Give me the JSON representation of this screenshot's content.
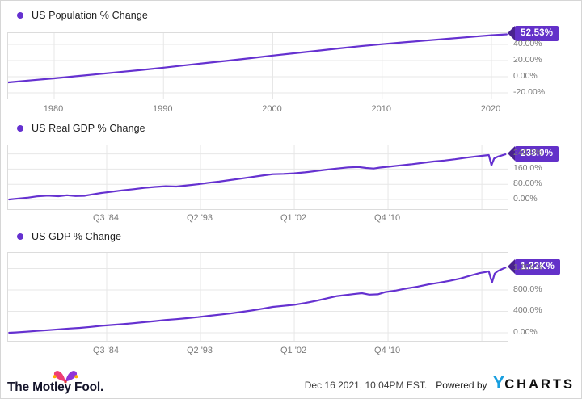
{
  "colors": {
    "line": "#6531d0",
    "legend_dot": "#6531d0",
    "badge_bg": "#6331c9",
    "badge_tip": "#49228f",
    "grid": "#e7e7e7",
    "plot_border": "#dcdcdc",
    "axis_text": "#7a7a7a",
    "ycharts_blue": "#189fe0",
    "fool_pink": "#ee3d74",
    "fool_purple": "#8f35d8",
    "fool_gold": "#ffac00"
  },
  "chart_data": [
    {
      "type": "line",
      "title": "US Population % Change",
      "badge": "52.53%",
      "legend": [
        "US Population % Change"
      ],
      "xlabel": "",
      "ylabel": "% Change",
      "x_ticks": [
        {
          "label": "1980",
          "x": 1980
        },
        {
          "label": "1990",
          "x": 1990
        },
        {
          "label": "2000",
          "x": 2000
        },
        {
          "label": "2010",
          "x": 2010
        },
        {
          "label": "2020",
          "x": 2020
        }
      ],
      "y_ticks": [
        {
          "label": "40.00%",
          "v": 40
        },
        {
          "label": "20.00%",
          "v": 20
        },
        {
          "label": "0.00%",
          "v": 0
        },
        {
          "label": "-20.00%",
          "v": -20
        }
      ],
      "x_range": [
        1975.8,
        2021.5
      ],
      "y_range": [
        -27,
        54
      ],
      "points": [
        [
          1975.8,
          -7
        ],
        [
          1978,
          -4.3
        ],
        [
          1980,
          -2
        ],
        [
          1982,
          0.6
        ],
        [
          1984,
          3.2
        ],
        [
          1986,
          5.8
        ],
        [
          1988,
          8.4
        ],
        [
          1990,
          11.2
        ],
        [
          1992,
          14.2
        ],
        [
          1994,
          17.1
        ],
        [
          1996,
          20.0
        ],
        [
          1998,
          23.0
        ],
        [
          2000,
          26.2
        ],
        [
          2002,
          29.1
        ],
        [
          2004,
          32.0
        ],
        [
          2006,
          35.0
        ],
        [
          2008,
          37.8
        ],
        [
          2010,
          40.3
        ],
        [
          2012,
          42.6
        ],
        [
          2014,
          44.8
        ],
        [
          2016,
          47.0
        ],
        [
          2018,
          49.2
        ],
        [
          2019,
          50.3
        ],
        [
          2020,
          51.4
        ],
        [
          2021.4,
          52.53
        ]
      ]
    },
    {
      "type": "line",
      "title": "US Real GDP % Change",
      "badge": "238.0%",
      "legend": [
        "US Real GDP % Change"
      ],
      "xlabel": "",
      "ylabel": "% Change",
      "x_ticks": [
        {
          "label": "Q3 '84",
          "x": 1984.5
        },
        {
          "label": "Q2 '93",
          "x": 1993.25
        },
        {
          "label": "Q1 '02",
          "x": 2002.0
        },
        {
          "label": "Q4 '10",
          "x": 2010.75
        },
        {
          "label": "",
          "x": 2019.5
        }
      ],
      "y_ticks": [
        {
          "label": "240.0%",
          "v": 240
        },
        {
          "label": "160.0%",
          "v": 160
        },
        {
          "label": "80.00%",
          "v": 80
        },
        {
          "label": "0.00%",
          "v": 0
        }
      ],
      "x_range": [
        1975.4,
        2021.7
      ],
      "y_range": [
        -50,
        285
      ],
      "points": [
        [
          1975.4,
          0
        ],
        [
          1976.3,
          5
        ],
        [
          1977.2,
          10
        ],
        [
          1978,
          16
        ],
        [
          1979,
          20
        ],
        [
          1980,
          17
        ],
        [
          1980.8,
          22
        ],
        [
          1981.6,
          18
        ],
        [
          1982.4,
          19
        ],
        [
          1983.2,
          27
        ],
        [
          1984,
          34
        ],
        [
          1985,
          41
        ],
        [
          1986,
          48
        ],
        [
          1987,
          54
        ],
        [
          1988,
          61
        ],
        [
          1989,
          66
        ],
        [
          1990,
          70
        ],
        [
          1991,
          68
        ],
        [
          1992,
          74
        ],
        [
          1993,
          80
        ],
        [
          1994,
          88
        ],
        [
          1995,
          94
        ],
        [
          1996,
          102
        ],
        [
          1997,
          110
        ],
        [
          1998,
          118
        ],
        [
          1999,
          126
        ],
        [
          2000,
          133
        ],
        [
          2001,
          135
        ],
        [
          2002,
          138
        ],
        [
          2003,
          143
        ],
        [
          2004,
          150
        ],
        [
          2005,
          157
        ],
        [
          2006,
          163
        ],
        [
          2007,
          169
        ],
        [
          2008,
          171
        ],
        [
          2008.7,
          166
        ],
        [
          2009.4,
          163
        ],
        [
          2010,
          168
        ],
        [
          2011,
          174
        ],
        [
          2012,
          180
        ],
        [
          2013,
          186
        ],
        [
          2014,
          193
        ],
        [
          2015,
          200
        ],
        [
          2016,
          205
        ],
        [
          2017,
          212
        ],
        [
          2018,
          220
        ],
        [
          2019,
          227
        ],
        [
          2019.8,
          232
        ],
        [
          2020.15,
          234
        ],
        [
          2020.4,
          180
        ],
        [
          2020.65,
          216
        ],
        [
          2021,
          226
        ],
        [
          2021.7,
          238
        ]
      ]
    },
    {
      "type": "line",
      "title": "US GDP % Change",
      "badge": "1.22K%",
      "legend": [
        "US GDP % Change"
      ],
      "xlabel": "",
      "ylabel": "% Change",
      "x_ticks": [
        {
          "label": "Q3 '84",
          "x": 1984.5
        },
        {
          "label": "Q2 '93",
          "x": 1993.25
        },
        {
          "label": "Q1 '02",
          "x": 2002.0
        },
        {
          "label": "Q4 '10",
          "x": 2010.75
        },
        {
          "label": "",
          "x": 2019.5
        }
      ],
      "y_ticks": [
        {
          "label": "1.20K%",
          "v": 1200
        },
        {
          "label": "800.0%",
          "v": 800
        },
        {
          "label": "400.0%",
          "v": 400
        },
        {
          "label": "0.00%",
          "v": 0
        }
      ],
      "x_range": [
        1975.4,
        2021.7
      ],
      "y_range": [
        -150,
        1490
      ],
      "points": [
        [
          1975.4,
          0
        ],
        [
          1976,
          6
        ],
        [
          1977,
          20
        ],
        [
          1978,
          34
        ],
        [
          1979,
          48
        ],
        [
          1980,
          63
        ],
        [
          1981,
          78
        ],
        [
          1982,
          90
        ],
        [
          1983,
          108
        ],
        [
          1984,
          130
        ],
        [
          1985,
          145
        ],
        [
          1986,
          160
        ],
        [
          1987,
          178
        ],
        [
          1988,
          198
        ],
        [
          1989,
          218
        ],
        [
          1990,
          239
        ],
        [
          1991,
          254
        ],
        [
          1992,
          271
        ],
        [
          1993,
          292
        ],
        [
          1994,
          315
        ],
        [
          1995,
          336
        ],
        [
          1996,
          359
        ],
        [
          1997,
          386
        ],
        [
          1998,
          415
        ],
        [
          1999,
          448
        ],
        [
          2000,
          483
        ],
        [
          2001,
          502
        ],
        [
          2002,
          522
        ],
        [
          2003,
          556
        ],
        [
          2004,
          595
        ],
        [
          2005,
          640
        ],
        [
          2006,
          686
        ],
        [
          2007.5,
          722
        ],
        [
          2008.3,
          740
        ],
        [
          2009,
          713
        ],
        [
          2009.8,
          719
        ],
        [
          2010.5,
          760
        ],
        [
          2011.5,
          790
        ],
        [
          2012.5,
          828
        ],
        [
          2013.5,
          862
        ],
        [
          2014.5,
          902
        ],
        [
          2015.5,
          935
        ],
        [
          2016.5,
          970
        ],
        [
          2017.5,
          1015
        ],
        [
          2018.5,
          1072
        ],
        [
          2019.3,
          1116
        ],
        [
          2019.9,
          1137
        ],
        [
          2020.15,
          1148
        ],
        [
          2020.45,
          940
        ],
        [
          2020.7,
          1106
        ],
        [
          2021,
          1155
        ],
        [
          2021.7,
          1219.6
        ]
      ]
    }
  ],
  "footer": {
    "logo_text": "The Motley Fool.",
    "date": "Dec 16 2021, 10:04PM EST.",
    "powered_by": "Powered by",
    "brand_y": "Y",
    "brand_rest": "CHARTS"
  }
}
